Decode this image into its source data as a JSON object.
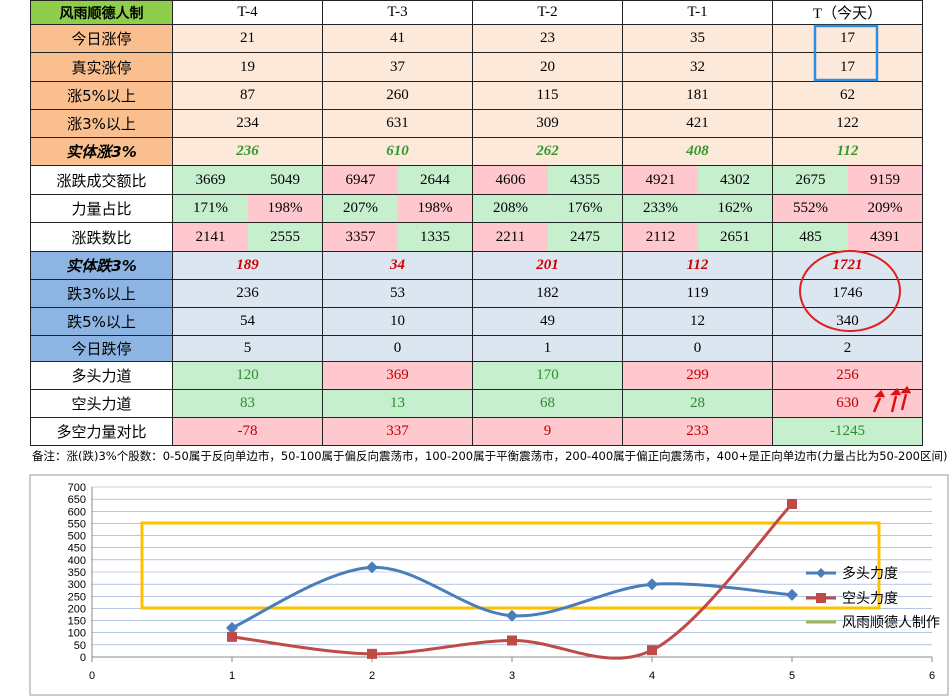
{
  "table": {
    "header": [
      "风雨顺德人制",
      "T-4",
      "T-3",
      "T-2",
      "T-1",
      "T（今天）"
    ],
    "rows": [
      {
        "label": "今日涨停",
        "cells": [
          "21",
          "41",
          "23",
          "35",
          "17"
        ]
      },
      {
        "label": "真实涨停",
        "cells": [
          "19",
          "37",
          "20",
          "32",
          "17"
        ]
      },
      {
        "label": "涨5%以上",
        "cells": [
          "87",
          "260",
          "115",
          "181",
          "62"
        ]
      },
      {
        "label": "涨3%以上",
        "cells": [
          "234",
          "631",
          "309",
          "421",
          "122"
        ]
      },
      {
        "label": "实体涨3%",
        "cells": [
          "236",
          "610",
          "262",
          "408",
          "112"
        ]
      },
      {
        "label": "涨跌成交额比",
        "cells": [
          [
            "3669",
            "5049"
          ],
          [
            "6947",
            "2644"
          ],
          [
            "4606",
            "4355"
          ],
          [
            "4921",
            "4302"
          ],
          [
            "2675",
            "9159"
          ]
        ]
      },
      {
        "label": "力量占比",
        "cells": [
          [
            "171%",
            "198%"
          ],
          [
            "207%",
            "198%"
          ],
          [
            "208%",
            "176%"
          ],
          [
            "233%",
            "162%"
          ],
          [
            "552%",
            "209%"
          ]
        ]
      },
      {
        "label": "涨跌数比",
        "cells": [
          [
            "2141",
            "2555"
          ],
          [
            "3357",
            "1335"
          ],
          [
            "2211",
            "2475"
          ],
          [
            "2112",
            "2651"
          ],
          [
            "485",
            "4391"
          ]
        ]
      },
      {
        "label": "实体跌3%",
        "cells": [
          "189",
          "34",
          "201",
          "112",
          "1721"
        ]
      },
      {
        "label": "跌3%以上",
        "cells": [
          "236",
          "53",
          "182",
          "119",
          "1746"
        ]
      },
      {
        "label": "跌5%以上",
        "cells": [
          "54",
          "10",
          "49",
          "12",
          "340"
        ]
      },
      {
        "label": "今日跌停",
        "cells": [
          "5",
          "0",
          "1",
          "0",
          "2"
        ]
      },
      {
        "label": "多头力道",
        "cells": [
          "120",
          "369",
          "170",
          "299",
          "256"
        ]
      },
      {
        "label": "空头力道",
        "cells": [
          "83",
          "13",
          "68",
          "28",
          "630"
        ]
      },
      {
        "label": "多空力量对比",
        "cells": [
          "-78",
          "337",
          "9",
          "233",
          "-1245"
        ]
      }
    ],
    "note": "备注：涨(跌)3%个股数：0-50属于反向单边市，50-100属于偏反向震荡市，100-200属于平衡震荡市，200-400属于偏正向震荡市，400+是正向单边市(力量占比为50-200区间)"
  },
  "chart_data": {
    "type": "scatter",
    "x": [
      1,
      2,
      3,
      4,
      5
    ],
    "series": [
      {
        "name": "多头力度",
        "color": "#4a7ebb",
        "values": [
          120,
          369,
          170,
          299,
          256
        ]
      },
      {
        "name": "空头力度",
        "color": "#be4b48",
        "values": [
          83,
          13,
          68,
          28,
          630
        ]
      }
    ],
    "legend_extra": {
      "name": "风雨顺德人制作",
      "color": "#98b954"
    },
    "xlim": [
      0,
      6
    ],
    "xticks": [
      0,
      1,
      2,
      3,
      4,
      5,
      6
    ],
    "ylim": [
      0,
      700
    ],
    "yticks": [
      0,
      50,
      100,
      150,
      200,
      250,
      300,
      350,
      400,
      450,
      500,
      550,
      600,
      650,
      700
    ],
    "grid": true
  }
}
